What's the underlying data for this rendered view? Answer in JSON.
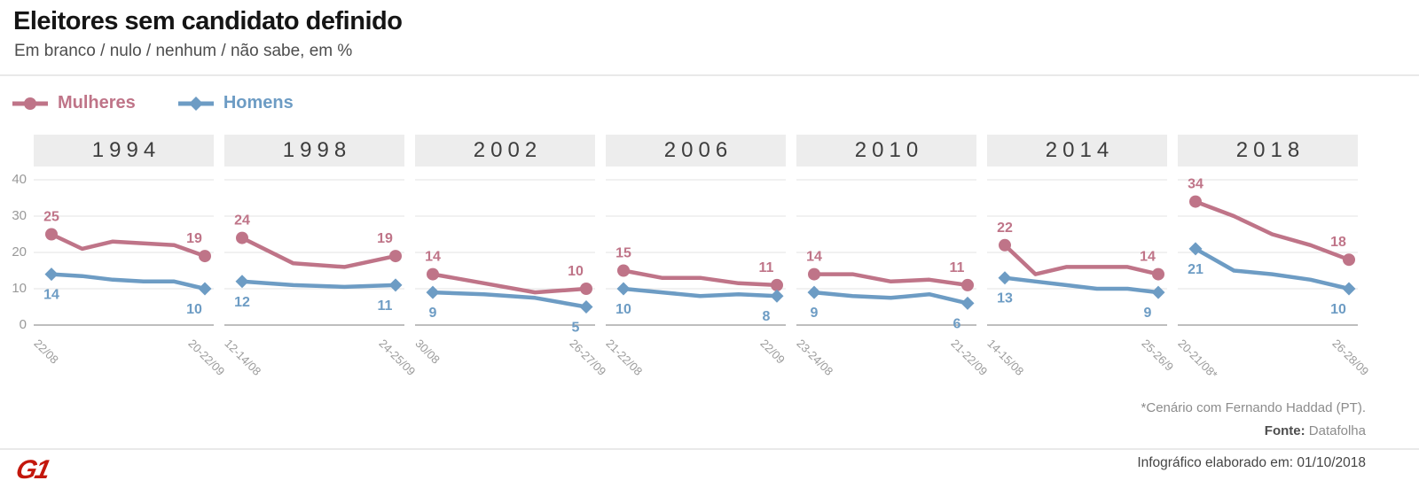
{
  "header": {
    "title": "Eleitores sem candidato definido",
    "subtitle": "Em branco / nulo / nenhum / não sabe, em %"
  },
  "colors": {
    "mulheres": "#bf7488",
    "homens": "#6d9cc4",
    "logo_red": "#c3170c",
    "year_band_bg": "#ededed",
    "gridline": "#e3e3e3",
    "axis_zero_line": "#a8a8a8"
  },
  "chart_data": {
    "type": "line",
    "title": "Eleitores sem candidato definido",
    "subtitle": "Em branco / nulo / nenhum / não sabe, em %",
    "unit": "%",
    "ylim": [
      0,
      40
    ],
    "y_ticks": [
      40,
      30,
      20,
      10,
      0
    ],
    "grid": true,
    "legend_position": "top-left",
    "value_labels": "first and last survey of each panel are labeled",
    "series_meta": [
      {
        "id": "mulheres",
        "label": "Mulheres",
        "color": "#bf7488",
        "marker": "circle"
      },
      {
        "id": "homens",
        "label": "Homens",
        "color": "#6d9cc4",
        "marker": "diamond"
      }
    ],
    "panels": [
      {
        "year": "1994",
        "dates": [
          "22/08",
          "20-22/09"
        ],
        "mulheres": [
          25,
          21,
          23,
          22.5,
          22,
          19
        ],
        "homens": [
          14,
          13.5,
          12.5,
          12,
          12,
          10
        ]
      },
      {
        "year": "1998",
        "dates": [
          "12-14/08",
          "24-25/09"
        ],
        "mulheres": [
          24,
          17,
          16,
          19
        ],
        "homens": [
          12,
          11,
          10.5,
          11
        ]
      },
      {
        "year": "2002",
        "dates": [
          "30/08",
          "26-27/09"
        ],
        "mulheres": [
          14,
          11.5,
          9,
          10
        ],
        "homens": [
          9,
          8.5,
          7.5,
          5
        ]
      },
      {
        "year": "2006",
        "dates": [
          "21-22/08",
          "22/09"
        ],
        "mulheres": [
          15,
          13,
          13,
          11.5,
          11
        ],
        "homens": [
          10,
          9,
          8,
          8.5,
          8
        ]
      },
      {
        "year": "2010",
        "dates": [
          "23-24/08",
          "21-22/09"
        ],
        "mulheres": [
          14,
          14,
          12,
          12.5,
          11
        ],
        "homens": [
          9,
          8,
          7.5,
          8.5,
          6
        ]
      },
      {
        "year": "2014",
        "dates": [
          "14-15/08",
          "25-26/9"
        ],
        "mulheres": [
          22,
          14,
          16,
          16,
          16,
          14
        ],
        "homens": [
          13,
          12,
          11,
          10,
          10,
          9
        ]
      },
      {
        "year": "2018",
        "dates": [
          "20-21/08*",
          "26-28/09"
        ],
        "mulheres": [
          34,
          30,
          25,
          22,
          18
        ],
        "homens": [
          21,
          15,
          14,
          12.5,
          10
        ]
      }
    ]
  },
  "footnotes": {
    "note": "*Cenário com Fernando Haddad (PT).",
    "source_label": "Fonte:",
    "source_value": " Datafolha"
  },
  "footer": {
    "logo": "G1",
    "info": "Infográfico elaborado em: 01/10/2018"
  }
}
